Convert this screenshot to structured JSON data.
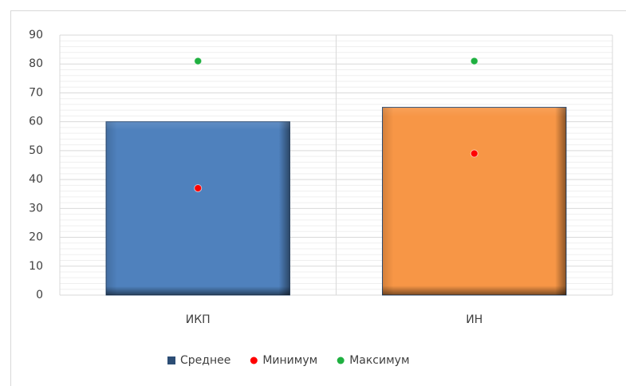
{
  "chart_data": {
    "type": "bar",
    "categories": [
      "ИКП",
      "ИН"
    ],
    "series": [
      {
        "name": "Среднее",
        "type": "bar",
        "color": "#2c4d75",
        "colors": [
          "#4f81bd",
          "#f79646"
        ],
        "values": [
          60,
          65
        ]
      },
      {
        "name": "Минимум",
        "type": "scatter",
        "color": "#ff0000",
        "values": [
          37,
          49
        ]
      },
      {
        "name": "Максимум",
        "type": "scatter",
        "color": "#1fb040",
        "values": [
          81,
          81
        ]
      }
    ],
    "ylim": [
      0,
      90
    ],
    "yticks": [
      0,
      10,
      20,
      30,
      40,
      50,
      60,
      70,
      80,
      90
    ],
    "grid": true,
    "minor_grid": true,
    "legend": "bottom"
  }
}
